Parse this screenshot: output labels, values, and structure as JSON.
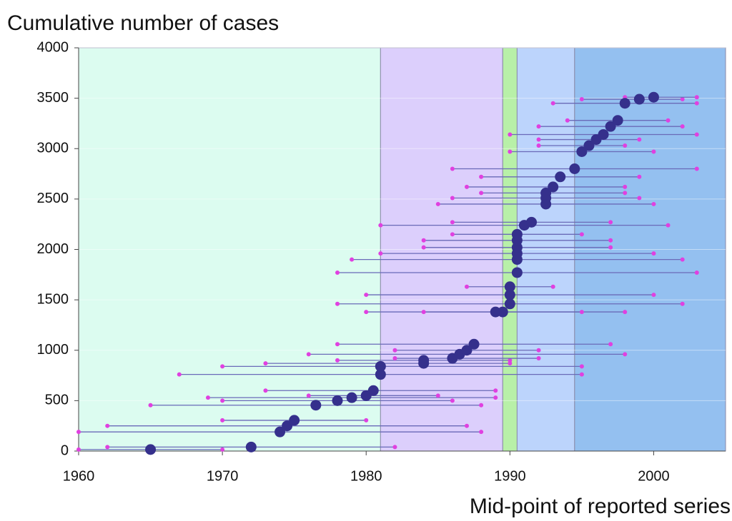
{
  "chart_data": {
    "type": "range-dot",
    "title": "Cumulative number of cases",
    "x_label": "Mid-point of reported series",
    "xlim": [
      1960,
      2005
    ],
    "ylim": [
      0,
      4000
    ],
    "xticks": [
      1960,
      1970,
      1980,
      1990,
      2000
    ],
    "yticks": [
      0,
      500,
      1000,
      1500,
      2000,
      2500,
      3000,
      3500,
      4000
    ],
    "grid": true,
    "bands": [
      {
        "from": 1960,
        "to": 1981,
        "color": "#dcfcf0"
      },
      {
        "from": 1981,
        "to": 1989.5,
        "color": "#dccffc"
      },
      {
        "from": 1989.5,
        "to": 1990.5,
        "color": "#b8f0a8"
      },
      {
        "from": 1990.5,
        "to": 1994.5,
        "color": "#bcd4fc"
      },
      {
        "from": 1994.5,
        "to": 2005,
        "color": "#94c0f0"
      }
    ],
    "series": [
      {
        "color": "#35308c",
        "range_color": "#6a6ab8",
        "end_color": "#e040e0",
        "x": [
          1965,
          1972,
          1974,
          1974.5,
          1975,
          1976.5,
          1978,
          1979,
          1980,
          1980.5,
          1981,
          1981,
          1984,
          1984,
          1986,
          1986.5,
          1987,
          1987.5,
          1989,
          1989.5,
          1990,
          1990,
          1990,
          1990.5,
          1990.5,
          1990.5,
          1990.5,
          1990.5,
          1990.5,
          1991,
          1991.5,
          1992.5,
          1992.5,
          1992.5,
          1993,
          1993.5,
          1994.5,
          1995,
          1995.5,
          1996,
          1996.5,
          1997,
          1997.5,
          1998,
          1999,
          2000
        ],
        "values": [
          15,
          40,
          190,
          250,
          305,
          455,
          500,
          530,
          550,
          600,
          760,
          840,
          870,
          900,
          920,
          960,
          1000,
          1060,
          1380,
          1380,
          1460,
          1550,
          1630,
          1770,
          1900,
          1960,
          2020,
          2090,
          2150,
          2240,
          2270,
          2450,
          2510,
          2560,
          2620,
          2720,
          2800,
          2970,
          3030,
          3090,
          3140,
          3220,
          3280,
          3450,
          3490,
          3510
        ],
        "start": [
          1960,
          1962,
          1960,
          1962,
          1970,
          1965,
          1970,
          1969,
          1976,
          1973,
          1967,
          1970,
          1973,
          1978,
          1982,
          1976,
          1982,
          1978,
          1980,
          1984,
          1978,
          1980,
          1987,
          1978,
          1979,
          1981,
          1984,
          1984,
          1986,
          1981,
          1986,
          1985,
          1986,
          1988,
          1987,
          1988,
          1986,
          1990,
          1992,
          1992,
          1990,
          1992,
          1994,
          1993,
          1995,
          1998
        ],
        "end": [
          1970,
          1982,
          1988,
          1987,
          1980,
          1988,
          1986,
          1989,
          1985,
          1989,
          1995,
          1995,
          1990,
          1990,
          1992,
          1998,
          1992,
          1997,
          1998,
          1995,
          2002,
          2000,
          1993,
          2003,
          2002,
          2000,
          1997,
          1997,
          1995,
          2001,
          1997,
          2000,
          1999,
          1998,
          1998,
          1999,
          2003,
          2000,
          1998,
          1999,
          2003,
          2002,
          2001,
          2003,
          2002,
          2003
        ]
      }
    ]
  }
}
